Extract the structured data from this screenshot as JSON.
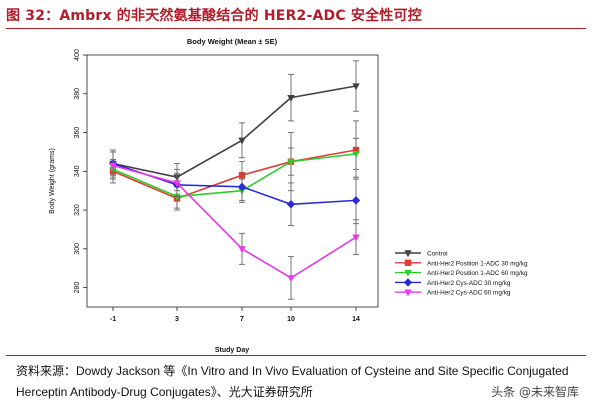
{
  "figure": {
    "title": "图 32：Ambrx 的非天然氨基酸结合的 HER2-ADC 安全性可控",
    "source_label": "资料来源：",
    "source_text": "Dowdy Jackson 等《In Vitro and In Vivo Evaluation of Cysteine and Site Specific Conjugated Herceptin Antibody-Drug Conjugates》、光大证券研究所",
    "watermark": "头条 @未来智库"
  },
  "chart_data": {
    "type": "line",
    "title": "Body Weight (Mean ± SE)",
    "xlabel": "Study Day",
    "ylabel": "Body Weight (grams)",
    "categories": [
      "-1",
      "3",
      "7",
      "10",
      "14"
    ],
    "ylim": [
      270,
      400
    ],
    "yticks": [
      280,
      300,
      320,
      340,
      360,
      380,
      400
    ],
    "grid": false,
    "legend_position": "bottom-right",
    "series": [
      {
        "name": "Control",
        "color": "#404040",
        "marker": "triangle-down",
        "x": [
          -1,
          3,
          7,
          10,
          14
        ],
        "values": [
          344,
          337,
          356,
          378,
          384
        ],
        "errors": [
          7,
          7,
          9,
          12,
          13
        ]
      },
      {
        "name": "Anti-Her2 Position 1-ADC 30 mg/kg",
        "color": "#e03c31",
        "marker": "square",
        "x": [
          -1,
          3,
          7,
          10,
          14
        ],
        "values": [
          340,
          326,
          338,
          345,
          351
        ],
        "errors": [
          6,
          6,
          7,
          15,
          15
        ]
      },
      {
        "name": "Anti-Her2 Position 1-ADC 60 mg/kg",
        "color": "#2ecc2e",
        "marker": "triangle-down",
        "x": [
          -1,
          3,
          7,
          10,
          14
        ],
        "values": [
          341,
          327,
          330,
          345,
          349
        ],
        "errors": [
          5,
          6,
          6,
          7,
          8
        ]
      },
      {
        "name": "Anti-Her2 Cys-ADC 30 mg/kg",
        "color": "#2b2bd9",
        "marker": "diamond",
        "x": [
          -1,
          3,
          7,
          10,
          14
        ],
        "values": [
          344,
          333,
          332,
          323,
          325
        ],
        "errors": [
          6,
          6,
          7,
          11,
          12
        ]
      },
      {
        "name": "Anti-Her2 Cys-ADC 60 mg/kg",
        "color": "#e838e8",
        "marker": "triangle-down",
        "x": [
          -1,
          3,
          7,
          10,
          14
        ],
        "values": [
          343,
          334,
          300,
          285,
          306
        ],
        "errors": [
          7,
          7,
          8,
          11,
          9
        ]
      }
    ]
  }
}
